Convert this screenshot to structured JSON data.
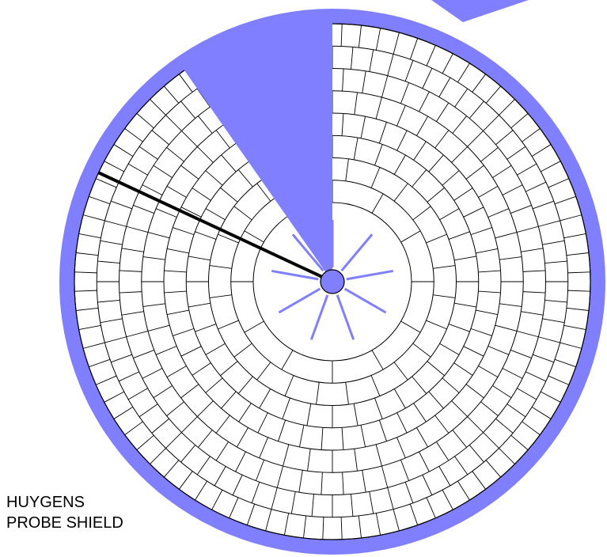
{
  "caption": {
    "line1": "HUYGENS",
    "line2": "PROBE SHIELD"
  },
  "colors": {
    "shield": "#7f7fff",
    "tiles": "#ffffff",
    "stroke": "#000000",
    "rays": "#7f7fff"
  },
  "diagram": {
    "tile_rings": 8,
    "tiles_per_ring": [
      12,
      24,
      36,
      48,
      48,
      60,
      72,
      84
    ],
    "cutout_sector_deg": [
      -35,
      0
    ],
    "spoke_count": 9,
    "pointer_deg": -65
  }
}
